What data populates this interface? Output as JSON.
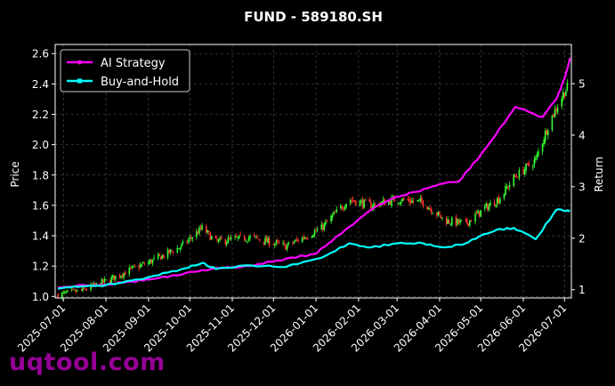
{
  "chart_data": {
    "type": "candlestick+line",
    "title": "FUND - 589180.SH",
    "xlabel": "",
    "ylabel": "Price",
    "y2label": "Return",
    "ylim": [
      0.99,
      2.66
    ],
    "y2lim": [
      0.84,
      5.76
    ],
    "x_ticks": [
      "2025-07-01",
      "2025-08-01",
      "2025-09-01",
      "2025-10-01",
      "2025-11-01",
      "2025-12-01",
      "2026-01-01",
      "2026-02-01",
      "2026-03-01",
      "2026-04-01",
      "2026-05-01",
      "2026-06-01",
      "2026-07-01"
    ],
    "y_ticks": [
      1.0,
      1.2,
      1.4,
      1.6,
      1.8,
      2.0,
      2.2,
      2.4,
      2.6
    ],
    "y2_ticks": [
      1,
      2,
      3,
      4,
      5
    ],
    "legend": {
      "placement": "top-left",
      "entries": [
        "AI Strategy",
        "Buy-and-Hold"
      ]
    },
    "grid": true,
    "colors": {
      "ai": "#ff00ff",
      "bh": "#00ffff",
      "up": "#33ff33",
      "down": "#ff3333",
      "bg": "#000000",
      "axis": "#ffffff"
    },
    "series": [
      {
        "name": "AI Strategy",
        "axis": "right",
        "points": [
          [
            "2025-06-27",
            1.04
          ],
          [
            "2025-07-15",
            1.09
          ],
          [
            "2025-08-01",
            1.1
          ],
          [
            "2025-08-20",
            1.16
          ],
          [
            "2025-09-05",
            1.21
          ],
          [
            "2025-09-25",
            1.29
          ],
          [
            "2025-10-10",
            1.38
          ],
          [
            "2025-11-01",
            1.43
          ],
          [
            "2025-11-20",
            1.5
          ],
          [
            "2025-12-10",
            1.6
          ],
          [
            "2026-01-01",
            1.7
          ],
          [
            "2026-01-10",
            1.9
          ],
          [
            "2026-01-25",
            2.22
          ],
          [
            "2026-02-10",
            2.55
          ],
          [
            "2026-02-28",
            2.8
          ],
          [
            "2026-03-15",
            2.9
          ],
          [
            "2026-04-01",
            3.05
          ],
          [
            "2026-04-15",
            3.1
          ],
          [
            "2026-05-01",
            3.62
          ],
          [
            "2026-05-12",
            4.01
          ],
          [
            "2026-05-26",
            4.55
          ],
          [
            "2026-06-15",
            4.35
          ],
          [
            "2026-06-25",
            4.7
          ],
          [
            "2026-07-01",
            5.1
          ],
          [
            "2026-07-05",
            5.5
          ]
        ]
      },
      {
        "name": "Buy-and-Hold",
        "axis": "right",
        "points": [
          [
            "2025-06-27",
            1.02
          ],
          [
            "2025-07-15",
            1.07
          ],
          [
            "2025-08-01",
            1.09
          ],
          [
            "2025-08-20",
            1.18
          ],
          [
            "2025-09-05",
            1.27
          ],
          [
            "2025-09-25",
            1.4
          ],
          [
            "2025-10-10",
            1.52
          ],
          [
            "2025-10-20",
            1.4
          ],
          [
            "2025-11-15",
            1.47
          ],
          [
            "2025-12-10",
            1.44
          ],
          [
            "2026-01-05",
            1.62
          ],
          [
            "2026-01-25",
            1.9
          ],
          [
            "2026-02-10",
            1.82
          ],
          [
            "2026-03-01",
            1.9
          ],
          [
            "2026-03-20",
            1.9
          ],
          [
            "2026-04-05",
            1.82
          ],
          [
            "2026-04-20",
            1.9
          ],
          [
            "2026-05-01",
            2.05
          ],
          [
            "2026-05-15",
            2.18
          ],
          [
            "2026-05-25",
            2.2
          ],
          [
            "2026-06-10",
            1.98
          ],
          [
            "2026-06-25",
            2.55
          ],
          [
            "2026-07-05",
            2.52
          ]
        ]
      },
      {
        "name": "Price",
        "axis": "left",
        "kind": "candlestick",
        "points": [
          [
            "2025-06-27",
            1.01
          ],
          [
            "2025-07-15",
            1.04
          ],
          [
            "2025-08-01",
            1.1
          ],
          [
            "2025-08-20",
            1.18
          ],
          [
            "2025-09-05",
            1.24
          ],
          [
            "2025-09-25",
            1.33
          ],
          [
            "2025-10-10",
            1.45
          ],
          [
            "2025-10-20",
            1.36
          ],
          [
            "2025-11-15",
            1.39
          ],
          [
            "2025-12-10",
            1.33
          ],
          [
            "2026-01-05",
            1.45
          ],
          [
            "2026-01-25",
            1.64
          ],
          [
            "2026-02-10",
            1.6
          ],
          [
            "2026-03-01",
            1.64
          ],
          [
            "2026-03-20",
            1.62
          ],
          [
            "2026-04-05",
            1.5
          ],
          [
            "2026-04-20",
            1.48
          ],
          [
            "2026-05-01",
            1.56
          ],
          [
            "2026-05-15",
            1.65
          ],
          [
            "2026-05-25",
            1.78
          ],
          [
            "2026-06-10",
            1.9
          ],
          [
            "2026-06-20",
            2.15
          ],
          [
            "2026-07-01",
            2.35
          ],
          [
            "2026-07-05",
            2.4
          ]
        ]
      }
    ]
  },
  "watermark": "uqtool.com"
}
